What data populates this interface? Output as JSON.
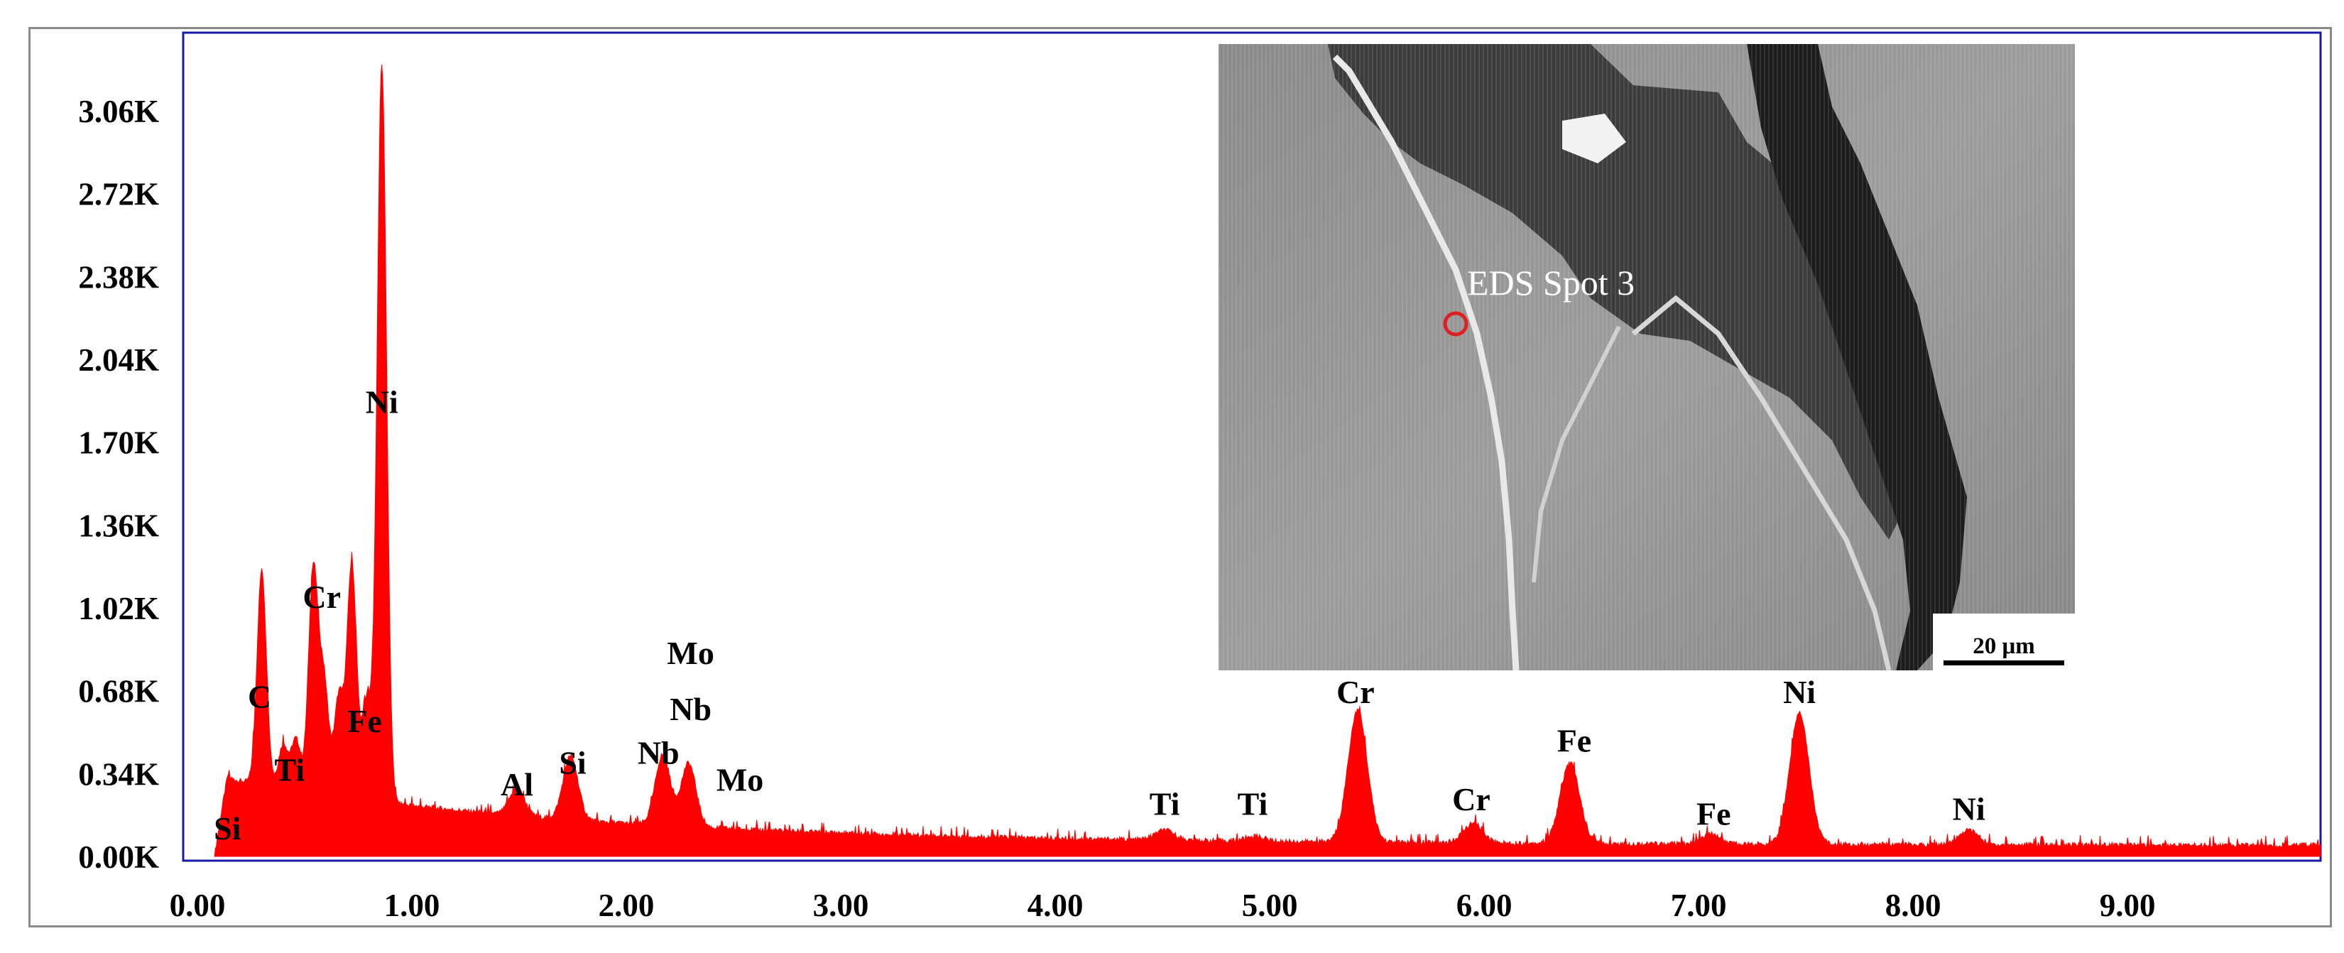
{
  "chart_data": {
    "type": "area",
    "title": "",
    "xlabel": "",
    "ylabel": "",
    "xlim": [
      0,
      9.9
    ],
    "ylim": [
      0,
      3.4
    ],
    "x_ticks": [
      "0.00",
      "1.00",
      "2.00",
      "3.00",
      "4.00",
      "5.00",
      "6.00",
      "7.00",
      "8.00",
      "9.00"
    ],
    "y_ticks": [
      "0.00K",
      "0.34K",
      "0.68K",
      "1.02K",
      "1.36K",
      "1.70K",
      "2.04K",
      "2.38K",
      "2.72K",
      "3.06K"
    ],
    "grid": false,
    "series_color": "#ff0000",
    "frame_color": "#1a1aa6",
    "peaks": [
      {
        "label": "Si",
        "energy": 0.13,
        "counts_k": 0.05
      },
      {
        "label": "C",
        "energy": 0.3,
        "counts_k": 0.92
      },
      {
        "label": "Ti",
        "energy": 0.4,
        "counts_k": 0.22
      },
      {
        "label": "Ti",
        "energy": 0.46,
        "counts_k": 0.25
      },
      {
        "label": "Cr",
        "energy": 0.54,
        "counts_k": 0.95
      },
      {
        "label": "Cr",
        "energy": 0.59,
        "counts_k": 0.5
      },
      {
        "label": "Fe",
        "energy": 0.66,
        "counts_k": 0.45
      },
      {
        "label": "Fe",
        "energy": 0.72,
        "counts_k": 1.0
      },
      {
        "label": "Fe",
        "energy": 0.79,
        "counts_k": 0.45
      },
      {
        "label": "Ni",
        "energy": 0.86,
        "counts_k": 3.06
      },
      {
        "label": "Al",
        "energy": 1.49,
        "counts_k": 0.15
      },
      {
        "label": "Si",
        "energy": 1.74,
        "counts_k": 0.3
      },
      {
        "label": "Nb",
        "energy": 2.17,
        "counts_k": 0.33
      },
      {
        "label": "Mo",
        "energy": 2.29,
        "counts_k": 0.3
      },
      {
        "label": "Ti",
        "energy": 4.51,
        "counts_k": 0.08
      },
      {
        "label": "Ti",
        "energy": 4.93,
        "counts_k": 0.06
      },
      {
        "label": "Cr",
        "energy": 5.41,
        "counts_k": 0.58
      },
      {
        "label": "Cr",
        "energy": 5.95,
        "counts_k": 0.12
      },
      {
        "label": "Fe",
        "energy": 6.4,
        "counts_k": 0.37
      },
      {
        "label": "Fe",
        "energy": 7.06,
        "counts_k": 0.08
      },
      {
        "label": "Ni",
        "energy": 7.47,
        "counts_k": 0.58
      },
      {
        "label": "Ni",
        "energy": 8.26,
        "counts_k": 0.1
      }
    ],
    "labels": [
      {
        "text": "Si",
        "energy": 0.14,
        "counts_k": 0.07
      },
      {
        "text": "C",
        "energy": 0.29,
        "counts_k": 0.61
      },
      {
        "text": "Ti",
        "energy": 0.43,
        "counts_k": 0.31
      },
      {
        "text": "Cr",
        "energy": 0.58,
        "counts_k": 1.02
      },
      {
        "text": "Fe",
        "energy": 0.78,
        "counts_k": 0.51
      },
      {
        "text": "Ni",
        "energy": 0.86,
        "counts_k": 1.82
      },
      {
        "text": "Al",
        "energy": 1.49,
        "counts_k": 0.25
      },
      {
        "text": "Si",
        "energy": 1.75,
        "counts_k": 0.34
      },
      {
        "text": "Nb",
        "energy": 2.15,
        "counts_k": 0.38
      },
      {
        "text": "Mo",
        "energy": 2.3,
        "counts_k": 0.79
      },
      {
        "text": "Nb",
        "energy": 2.3,
        "counts_k": 0.56
      },
      {
        "text": "Mo",
        "energy": 2.53,
        "counts_k": 0.27
      },
      {
        "text": "Ti",
        "energy": 4.51,
        "counts_k": 0.17
      },
      {
        "text": "Ti",
        "energy": 4.92,
        "counts_k": 0.17
      },
      {
        "text": "Cr",
        "energy": 5.4,
        "counts_k": 0.63
      },
      {
        "text": "Cr",
        "energy": 5.94,
        "counts_k": 0.19
      },
      {
        "text": "Fe",
        "energy": 6.42,
        "counts_k": 0.43
      },
      {
        "text": "Fe",
        "energy": 7.07,
        "counts_k": 0.13
      },
      {
        "text": "Ni",
        "energy": 7.47,
        "counts_k": 0.63
      },
      {
        "text": "Ni",
        "energy": 8.26,
        "counts_k": 0.15
      }
    ]
  },
  "inset": {
    "caption": "EDS Spot 3",
    "scale_bar": "20 μm",
    "marker_color": "#e02020"
  }
}
